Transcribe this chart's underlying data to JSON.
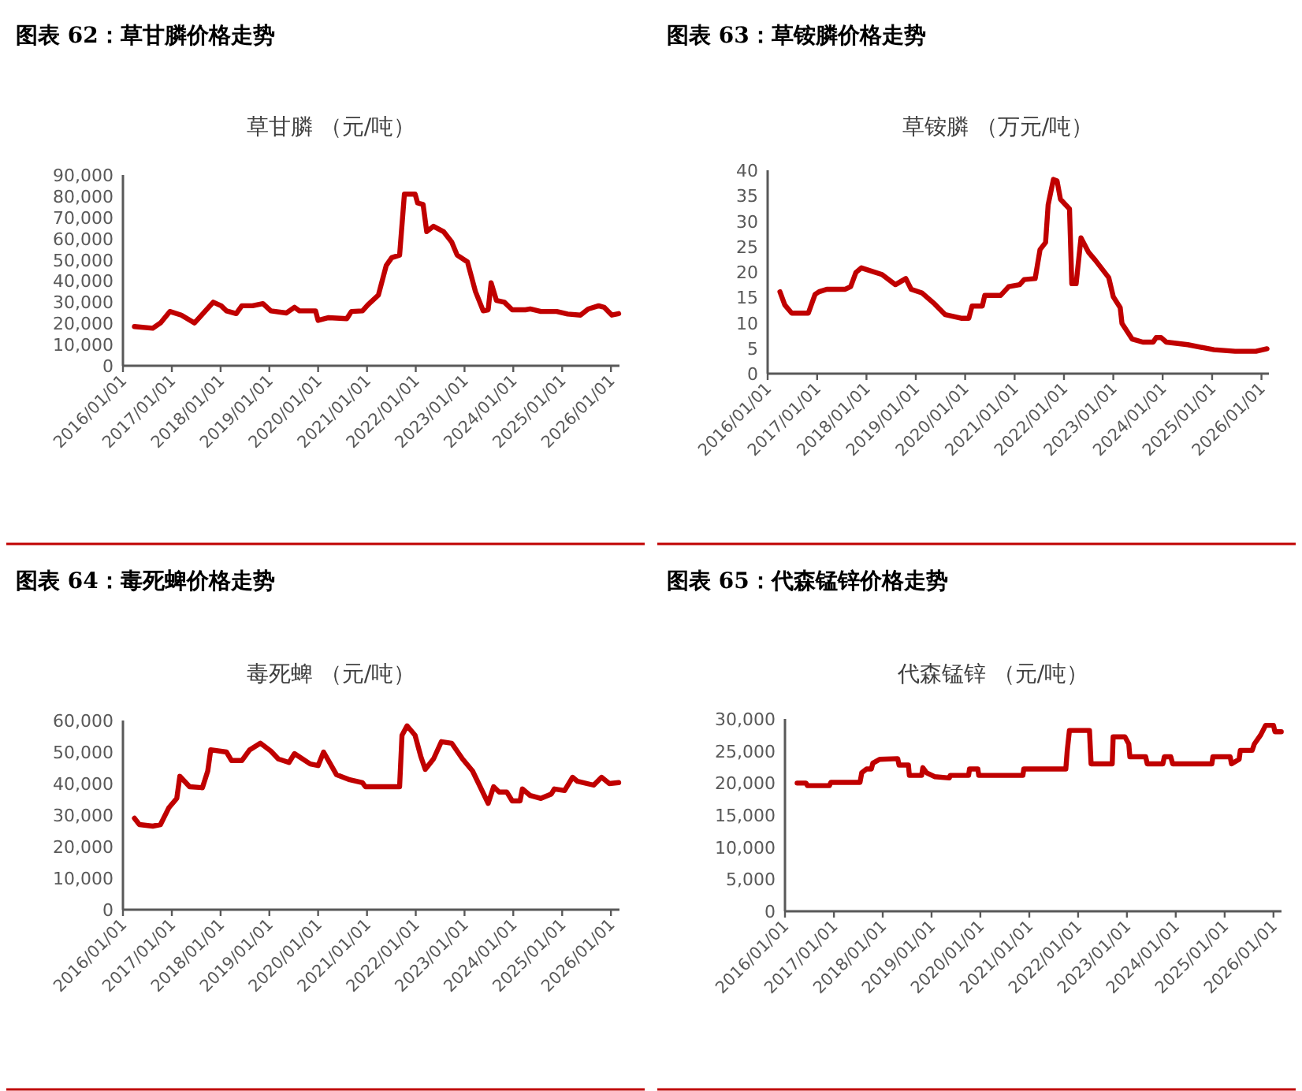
{
  "chart_data": [
    {
      "type": "line",
      "title": "图表 62：草甘膦价格走势",
      "subtitle": "草甘膦 （元/吨）",
      "color": "#c00000",
      "x": [
        "2016-03-27",
        "2016-08-11",
        "2016-10-08",
        "2016-12-17",
        "2017-03-13",
        "2017-06-20",
        "2017-09-09",
        "2017-11-07",
        "2018-01-05",
        "2018-02-14",
        "2018-04-28",
        "2018-06-09",
        "2018-08-28",
        "2018-11-14",
        "2019-01-12",
        "2019-05-07",
        "2019-07-08",
        "2019-08-14",
        "2019-12-13",
        "2020-01-01",
        "2020-03-20",
        "2020-08-03",
        "2020-09-06",
        "2020-11-28",
        "2021-01-08",
        "2021-03-27",
        "2021-05-25",
        "2021-07-05",
        "2021-09-02",
        "2021-10-08",
        "2021-12-27",
        "2022-01-15",
        "2022-02-25",
        "2022-03-24",
        "2022-05-14",
        "2022-07-28",
        "2022-09-27",
        "2022-11-07",
        "2023-01-23",
        "2023-03-24",
        "2023-05-21",
        "2023-06-27",
        "2023-07-19",
        "2023-08-28",
        "2023-10-26",
        "2023-12-24",
        "2024-04-01",
        "2024-05-07",
        "2024-07-26",
        "2024-11-21",
        "2025-02-11",
        "2025-05-18",
        "2025-07-15",
        "2025-10-01",
        "2025-11-11",
        "2026-01-08",
        "2026-02-28"
      ],
      "values": [
        18500,
        17700,
        20200,
        25600,
        23900,
        20200,
        25900,
        30000,
        28300,
        25900,
        24600,
        28300,
        28300,
        29300,
        25900,
        24900,
        27600,
        25900,
        25900,
        21400,
        22700,
        22200,
        25600,
        25900,
        28800,
        33300,
        47300,
        51000,
        52200,
        81000,
        81000,
        76800,
        76100,
        63300,
        65800,
        63300,
        58400,
        52200,
        49000,
        35000,
        25900,
        26400,
        39200,
        30800,
        30000,
        26400,
        26400,
        26800,
        25600,
        25600,
        24400,
        23900,
        26800,
        28300,
        27600,
        23900,
        24600
      ],
      "xlim": [
        "2016-01-01",
        "2026-03-06"
      ],
      "xticks": [
        {
          "value": "2016-01-01",
          "label": "2016/01/01"
        },
        {
          "value": "2017-01-01",
          "label": "2017/01/01"
        },
        {
          "value": "2018-01-01",
          "label": "2018/01/01"
        },
        {
          "value": "2019-01-01",
          "label": "2019/01/01"
        },
        {
          "value": "2020-01-01",
          "label": "2020/01/01"
        },
        {
          "value": "2021-01-01",
          "label": "2021/01/01"
        },
        {
          "value": "2022-01-01",
          "label": "2022/01/01"
        },
        {
          "value": "2023-01-01",
          "label": "2023/01/01"
        },
        {
          "value": "2024-01-01",
          "label": "2024/01/01"
        },
        {
          "value": "2025-01-01",
          "label": "2025/01/01"
        },
        {
          "value": "2026-01-01",
          "label": "2026/01/01"
        }
      ],
      "ylim": [
        0,
        90000
      ],
      "yticks": [
        0,
        {
          "value": 10000,
          "label": "10,000"
        },
        {
          "value": 20000,
          "label": "20,000"
        },
        {
          "value": 30000,
          "label": "30,000"
        },
        {
          "value": 40000,
          "label": "40,000"
        },
        {
          "value": 50000,
          "label": "50,000"
        },
        {
          "value": 60000,
          "label": "60,000"
        },
        {
          "value": 70000,
          "label": "70,000"
        },
        {
          "value": 80000,
          "label": "80,000"
        },
        {
          "value": 90000,
          "label": "90,000"
        }
      ]
    },
    {
      "type": "line",
      "title": "图表 63：草铵膦价格走势",
      "subtitle": "草铵膦 （万元/吨）",
      "color": "#c00000",
      "x": [
        "2016-04-01",
        "2016-05-07",
        "2016-06-27",
        "2016-10-28",
        "2016-12-17",
        "2017-01-15",
        "2017-03-13",
        "2017-07-28",
        "2017-09-06",
        "2017-10-15",
        "2017-11-25",
        "2018-04-26",
        "2018-08-03",
        "2018-10-19",
        "2018-11-28",
        "2019-02-14",
        "2019-05-21",
        "2019-08-07",
        "2019-12-02",
        "2020-01-28",
        "2020-02-21",
        "2020-05-07",
        "2020-05-25",
        "2020-09-20",
        "2020-11-18",
        "2021-02-07",
        "2021-03-13",
        "2021-06-02",
        "2021-07-08",
        "2021-08-18",
        "2021-09-06",
        "2021-10-15",
        "2021-11-11",
        "2021-12-06",
        "2022-02-11",
        "2022-02-28",
        "2022-04-01",
        "2022-05-07",
        "2022-07-01",
        "2022-08-21",
        "2022-11-28",
        "2023-01-01",
        "2023-02-21",
        "2023-03-06",
        "2023-05-21",
        "2023-08-07",
        "2023-10-23",
        "2023-11-14",
        "2023-12-20",
        "2024-01-28",
        "2024-07-05",
        "2025-01-15",
        "2025-06-20",
        "2025-11-21",
        "2026-02-11"
      ],
      "values": [
        16.1,
        13.5,
        11.9,
        11.9,
        15.6,
        16.1,
        16.6,
        16.6,
        17.1,
        19.9,
        20.8,
        19.5,
        17.5,
        18.7,
        16.6,
        15.9,
        13.7,
        11.6,
        10.9,
        10.9,
        13.3,
        13.3,
        15.4,
        15.4,
        17.1,
        17.5,
        18.5,
        18.7,
        24.4,
        25.8,
        33.2,
        38.2,
        37.9,
        34.3,
        32.4,
        17.7,
        17.7,
        26.7,
        23.9,
        22.3,
        18.9,
        15.1,
        13.0,
        9.9,
        6.8,
        6.2,
        6.2,
        7.1,
        7.1,
        6.2,
        5.7,
        4.7,
        4.4,
        4.4,
        4.9
      ],
      "xlim": [
        "2016-01-01",
        "2026-02-25"
      ],
      "xticks": [
        {
          "value": "2016-01-01",
          "label": "2016/01/01"
        },
        {
          "value": "2017-01-01",
          "label": "2017/01/01"
        },
        {
          "value": "2018-01-01",
          "label": "2018/01/01"
        },
        {
          "value": "2019-01-01",
          "label": "2019/01/01"
        },
        {
          "value": "2020-01-01",
          "label": "2020/01/01"
        },
        {
          "value": "2021-01-01",
          "label": "2021/01/01"
        },
        {
          "value": "2022-01-01",
          "label": "2022/01/01"
        },
        {
          "value": "2023-01-01",
          "label": "2023/01/01"
        },
        {
          "value": "2024-01-01",
          "label": "2024/01/01"
        },
        {
          "value": "2025-01-01",
          "label": "2025/01/01"
        },
        {
          "value": "2026-01-01",
          "label": "2026/01/01"
        }
      ],
      "ylim": [
        0,
        40
      ],
      "yticks": [
        0,
        5,
        10,
        15,
        20,
        25,
        30,
        35,
        40
      ]
    },
    {
      "type": "line",
      "title": "图表 64：毒死蜱价格走势",
      "subtitle": "毒死蜱 （元/吨）",
      "color": "#c00000",
      "x": [
        "2016-03-27",
        "2016-05-03",
        "2016-08-11",
        "2016-10-08",
        "2016-12-09",
        "2017-02-07",
        "2017-03-02",
        "2017-05-14",
        "2017-08-18",
        "2017-09-27",
        "2017-10-19",
        "2018-02-14",
        "2018-03-24",
        "2018-06-09",
        "2018-08-07",
        "2018-10-26",
        "2019-01-12",
        "2019-03-09",
        "2019-05-28",
        "2019-07-08",
        "2019-11-03",
        "2020-01-01",
        "2020-02-11",
        "2020-05-18",
        "2020-08-25",
        "2020-11-28",
        "2020-12-20",
        "2021-09-02",
        "2021-09-20",
        "2021-10-28",
        "2021-12-27",
        "2022-02-07",
        "2022-03-13",
        "2022-05-14",
        "2022-07-12",
        "2022-09-27",
        "2022-12-17",
        "2023-03-02",
        "2023-04-28",
        "2023-06-27",
        "2023-08-07",
        "2023-09-17",
        "2023-11-14",
        "2023-12-24",
        "2024-02-21",
        "2024-03-09",
        "2024-05-07",
        "2024-07-26",
        "2024-10-12",
        "2024-11-03",
        "2025-01-19",
        "2025-03-20",
        "2025-04-26",
        "2025-08-25",
        "2025-10-23",
        "2025-12-20",
        "2026-02-28"
      ],
      "values": [
        29000,
        27000,
        26500,
        27000,
        32300,
        35300,
        42300,
        39000,
        38700,
        44000,
        50700,
        50000,
        47300,
        47300,
        50700,
        52800,
        50300,
        47800,
        46700,
        49500,
        46200,
        45700,
        50000,
        42800,
        41200,
        40300,
        39000,
        39000,
        55300,
        58300,
        55300,
        48700,
        44500,
        47800,
        53300,
        52800,
        47800,
        44000,
        39000,
        33700,
        39000,
        37300,
        37300,
        34500,
        34500,
        38300,
        36200,
        35300,
        36700,
        38300,
        37800,
        42000,
        40700,
        39500,
        42000,
        40000,
        40300
      ],
      "xlim": [
        "2016-01-01",
        "2026-03-06"
      ],
      "xticks": [
        {
          "value": "2016-01-01",
          "label": "2016/01/01"
        },
        {
          "value": "2017-01-01",
          "label": "2017/01/01"
        },
        {
          "value": "2018-01-01",
          "label": "2018/01/01"
        },
        {
          "value": "2019-01-01",
          "label": "2019/01/01"
        },
        {
          "value": "2020-01-01",
          "label": "2020/01/01"
        },
        {
          "value": "2021-01-01",
          "label": "2021/01/01"
        },
        {
          "value": "2022-01-01",
          "label": "2022/01/01"
        },
        {
          "value": "2023-01-01",
          "label": "2023/01/01"
        },
        {
          "value": "2024-01-01",
          "label": "2024/01/01"
        },
        {
          "value": "2025-01-01",
          "label": "2025/01/01"
        },
        {
          "value": "2026-01-01",
          "label": "2026/01/01"
        }
      ],
      "ylim": [
        0,
        60000
      ],
      "yticks": [
        0,
        {
          "value": 10000,
          "label": "10,000"
        },
        {
          "value": 20000,
          "label": "20,000"
        },
        {
          "value": 30000,
          "label": "30,000"
        },
        {
          "value": 40000,
          "label": "40,000"
        },
        {
          "value": 50000,
          "label": "50,000"
        },
        {
          "value": 60000,
          "label": "60,000"
        }
      ]
    },
    {
      "type": "line",
      "title": "图表 65：代森锰锌价格走势",
      "subtitle": "代森锰锌 （元/吨）",
      "color": "#c00000",
      "x": [
        "2016-04-01",
        "2016-06-06",
        "2016-06-17",
        "2016-11-28",
        "2016-12-09",
        "2017-07-15",
        "2017-07-28",
        "2017-09-02",
        "2017-10-08",
        "2017-10-19",
        "2017-12-09",
        "2018-04-23",
        "2018-05-03",
        "2018-07-12",
        "2018-07-19",
        "2018-10-19",
        "2018-10-28",
        "2018-11-25",
        "2019-01-23",
        "2019-05-14",
        "2019-05-21",
        "2019-10-05",
        "2019-10-12",
        "2019-12-13",
        "2019-12-20",
        "2020-11-14",
        "2020-11-21",
        "2021-10-01",
        "2021-10-12",
        "2021-10-28",
        "2022-03-27",
        "2022-04-08",
        "2022-09-13",
        "2022-09-20",
        "2022-12-17",
        "2023-01-15",
        "2023-01-23",
        "2023-05-21",
        "2023-06-02",
        "2023-09-27",
        "2023-10-08",
        "2023-11-25",
        "2023-12-09",
        "2024-09-27",
        "2024-10-05",
        "2025-02-11",
        "2025-02-21",
        "2025-04-19",
        "2025-04-28",
        "2025-07-26",
        "2025-08-11",
        "2025-09-27",
        "2025-11-03",
        "2026-01-01",
        "2026-01-12",
        "2026-02-28"
      ],
      "values": [
        20000,
        20000,
        19600,
        19600,
        20100,
        20100,
        21600,
        22200,
        22200,
        23100,
        23700,
        23800,
        22800,
        22800,
        21200,
        21200,
        22400,
        21600,
        21000,
        20800,
        21200,
        21200,
        22200,
        22200,
        21200,
        21200,
        22200,
        22200,
        25100,
        28200,
        28200,
        23000,
        23000,
        27200,
        27200,
        26100,
        24100,
        24100,
        23000,
        23000,
        24100,
        24100,
        23000,
        23000,
        24100,
        24100,
        23000,
        23700,
        25100,
        25100,
        26100,
        27500,
        29000,
        29000,
        28000,
        28000
      ],
      "xlim": [
        "2016-01-01",
        "2026-03-02"
      ],
      "xticks": [
        {
          "value": "2016-01-01",
          "label": "2016/01/01"
        },
        {
          "value": "2017-01-01",
          "label": "2017/01/01"
        },
        {
          "value": "2018-01-01",
          "label": "2018/01/01"
        },
        {
          "value": "2019-01-01",
          "label": "2019/01/01"
        },
        {
          "value": "2020-01-01",
          "label": "2020/01/01"
        },
        {
          "value": "2021-01-01",
          "label": "2021/01/01"
        },
        {
          "value": "2022-01-01",
          "label": "2022/01/01"
        },
        {
          "value": "2023-01-01",
          "label": "2023/01/01"
        },
        {
          "value": "2024-01-01",
          "label": "2024/01/01"
        },
        {
          "value": "2025-01-01",
          "label": "2025/01/01"
        },
        {
          "value": "2026-01-01",
          "label": "2026/01/01"
        }
      ],
      "ylim": [
        0,
        30000
      ],
      "yticks": [
        0,
        {
          "value": 5000,
          "label": "5,000"
        },
        {
          "value": 10000,
          "label": "10,000"
        },
        {
          "value": 15000,
          "label": "15,000"
        },
        {
          "value": 20000,
          "label": "20,000"
        },
        {
          "value": 25000,
          "label": "25,000"
        },
        {
          "value": 30000,
          "label": "30,000"
        }
      ]
    }
  ]
}
